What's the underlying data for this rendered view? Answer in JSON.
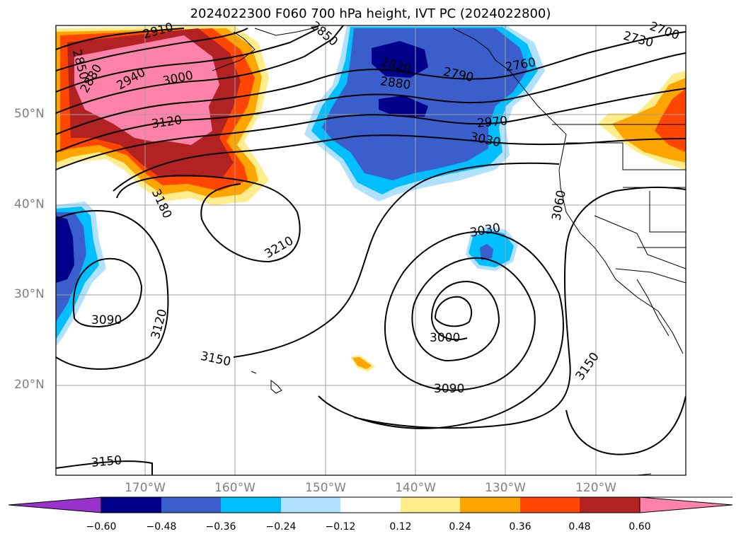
{
  "title": "2024022300 F060 700 hPa height, IVT PC (2024022800)",
  "latitude_labels": [
    "50°N",
    "40°N",
    "30°N",
    "20°N"
  ],
  "longitude_labels": [
    "170°W",
    "160°W",
    "150°W",
    "140°W",
    "130°W",
    "120°W"
  ],
  "contour_labels": [
    "2910",
    "2850",
    "2880",
    "2940",
    "3000",
    "3120",
    "3180",
    "3210",
    "3090",
    "3120",
    "3150",
    "2850",
    "2820",
    "2880",
    "2790",
    "2760",
    "2730",
    "2700",
    "2970",
    "3030",
    "3030",
    "3000",
    "3090",
    "3060",
    "3150",
    "3150"
  ],
  "colorbar": {
    "ticks": [
      "−0.60",
      "−0.48",
      "−0.36",
      "−0.24",
      "−0.12",
      "0.12",
      "0.24",
      "0.36",
      "0.48",
      "0.60"
    ],
    "colors": [
      "#9932cc",
      "#00008b",
      "#3a5fcd",
      "#00bfff",
      "#b0e2ff",
      "#ffffff",
      "#ffec8b",
      "#ffa500",
      "#ff4500",
      "#b22222",
      "#ff82ab"
    ]
  }
}
